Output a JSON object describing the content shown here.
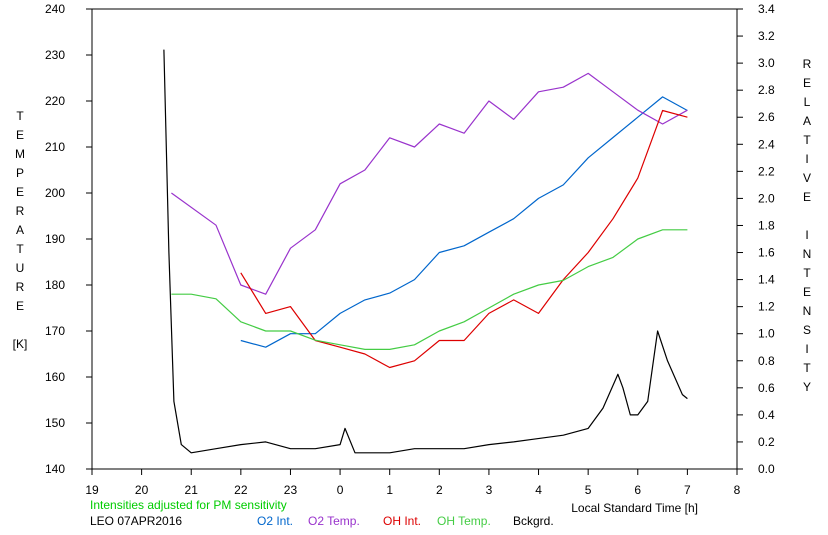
{
  "chart_data": {
    "type": "line",
    "xlabel": "Local Standard Time [h]",
    "ylabel_left": "TEMPERATURE [K]",
    "ylabel_right": "RELATIVE INTENSITY",
    "xlim": [
      19,
      32
    ],
    "ylim_left": [
      140,
      240
    ],
    "ylim_right": [
      0,
      3.4
    ],
    "x_ticks": [
      19,
      20,
      21,
      22,
      23,
      24,
      25,
      26,
      27,
      28,
      29,
      30,
      31,
      32
    ],
    "x_tick_labels": [
      "19",
      "20",
      "21",
      "22",
      "23",
      "0",
      "1",
      "2",
      "3",
      "4",
      "5",
      "6",
      "7",
      "8"
    ],
    "y_left_ticks": [
      140,
      150,
      160,
      170,
      180,
      190,
      200,
      210,
      220,
      230,
      240
    ],
    "y_right_ticks": [
      0.0,
      0.2,
      0.4,
      0.6,
      0.8,
      1.0,
      1.2,
      1.4,
      1.6,
      1.8,
      2.0,
      2.2,
      2.4,
      2.6,
      2.8,
      3.0,
      3.2,
      3.4
    ],
    "y_right_tick_labels": [
      "0.0",
      "0.2",
      "0.4",
      "0.6",
      "0.8",
      "1.0",
      "1.2",
      "1.4",
      "1.6",
      "1.8",
      "2.0",
      "2.2",
      "2.4",
      "2.6",
      "2.8",
      "3.0",
      "3.2",
      "3.4"
    ],
    "grid": false,
    "legend_position": "bottom",
    "note": "Intensities adjusted for PM sensitivity",
    "site_date": "LEO 07APR2016",
    "series": [
      {
        "name": "O2 Int.",
        "axis": "right",
        "color": "#0066cc",
        "x": [
          22.0,
          22.5,
          23.0,
          23.5,
          24.0,
          24.5,
          25.0,
          25.5,
          26.0,
          26.5,
          27.0,
          27.5,
          28.0,
          28.5,
          29.0,
          29.5,
          30.0,
          30.5,
          31.0
        ],
        "y": [
          0.95,
          0.9,
          1.0,
          1.0,
          1.15,
          1.25,
          1.3,
          1.4,
          1.6,
          1.65,
          1.75,
          1.85,
          2.0,
          2.1,
          2.3,
          2.45,
          2.6,
          2.75,
          2.65
        ]
      },
      {
        "name": "O2 Temp.",
        "axis": "left",
        "color": "#9933cc",
        "x": [
          20.6,
          21.5,
          22.0,
          22.5,
          23.0,
          23.5,
          24.0,
          24.5,
          25.0,
          25.5,
          26.0,
          26.5,
          27.0,
          27.5,
          28.0,
          28.5,
          29.0,
          29.5,
          30.0,
          30.5,
          31.0
        ],
        "y": [
          200,
          193,
          180,
          178,
          188,
          192,
          202,
          205,
          212,
          210,
          215,
          213,
          220,
          216,
          222,
          223,
          226,
          222,
          218,
          215,
          218
        ]
      },
      {
        "name": "OH Int.",
        "axis": "right",
        "color": "#dd0000",
        "x": [
          22.0,
          22.5,
          23.0,
          23.5,
          24.0,
          24.5,
          25.0,
          25.5,
          26.0,
          26.5,
          27.0,
          27.5,
          28.0,
          28.5,
          29.0,
          29.5,
          30.0,
          30.5,
          31.0
        ],
        "y": [
          1.45,
          1.15,
          1.2,
          0.95,
          0.9,
          0.85,
          0.75,
          0.8,
          0.95,
          0.95,
          1.15,
          1.25,
          1.15,
          1.4,
          1.6,
          1.85,
          2.15,
          2.65,
          2.6
        ]
      },
      {
        "name": "OH Temp.",
        "axis": "left",
        "color": "#44cc44",
        "x": [
          20.6,
          21.0,
          21.5,
          22.0,
          22.5,
          23.0,
          23.5,
          24.0,
          24.5,
          25.0,
          25.5,
          26.0,
          26.5,
          27.0,
          27.5,
          28.0,
          28.5,
          29.0,
          29.5,
          30.0,
          30.5,
          31.0
        ],
        "y": [
          178,
          178,
          177,
          172,
          170,
          170,
          168,
          167,
          166,
          166,
          167,
          170,
          172,
          175,
          178,
          180,
          181,
          184,
          186,
          190,
          192,
          192
        ]
      },
      {
        "name": "Bckgrd.",
        "axis": "right",
        "color": "#000000",
        "x": [
          20.45,
          20.55,
          20.65,
          20.8,
          21.0,
          21.5,
          22.0,
          22.5,
          23.0,
          23.5,
          24.0,
          24.1,
          24.3,
          25.0,
          25.5,
          26.0,
          26.5,
          27.0,
          27.5,
          27.9,
          28.5,
          29.0,
          29.3,
          29.6,
          29.7,
          29.85,
          30.0,
          30.2,
          30.4,
          30.6,
          30.9,
          31.0
        ],
        "y": [
          3.1,
          1.6,
          0.5,
          0.18,
          0.12,
          0.15,
          0.18,
          0.2,
          0.15,
          0.15,
          0.18,
          0.3,
          0.12,
          0.12,
          0.15,
          0.15,
          0.15,
          0.18,
          0.2,
          0.22,
          0.25,
          0.3,
          0.45,
          0.7,
          0.6,
          0.4,
          0.4,
          0.5,
          1.02,
          0.8,
          0.55,
          0.52
        ]
      }
    ]
  }
}
